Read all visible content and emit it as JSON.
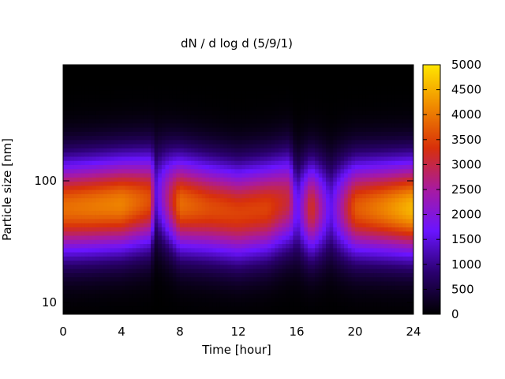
{
  "chart_data": {
    "type": "heatmap",
    "title": "dN / d log d (5/9/1)",
    "xlabel": "Time [hour]",
    "ylabel": "Particle size [nm]",
    "x_range": [
      0,
      24
    ],
    "x_ticks": [
      0,
      4,
      8,
      12,
      16,
      20,
      24
    ],
    "y_scale": "log",
    "y_range_nm": [
      8,
      900
    ],
    "y_ticks": [
      10,
      100
    ],
    "colorbar": {
      "range": [
        0,
        5000
      ],
      "ticks": [
        0,
        500,
        1000,
        1500,
        2000,
        2500,
        3000,
        3500,
        4000,
        4500,
        5000
      ],
      "palette": "black-purple-red-orange-yellow",
      "stops": [
        "#000000",
        "#2a006e",
        "#6a14ff",
        "#a81aa0",
        "#d8300a",
        "#f08a00",
        "#ffe600"
      ]
    },
    "time_hour": [
      0,
      2,
      4,
      6,
      6.3,
      8,
      10,
      12,
      14,
      15.5,
      16,
      17,
      18.3,
      20,
      22,
      24
    ],
    "peak_diameter_nm": [
      60,
      62,
      65,
      70,
      80,
      65,
      60,
      55,
      60,
      70,
      60,
      60,
      60,
      60,
      60,
      60
    ],
    "peak_value": [
      3900,
      4000,
      4100,
      3600,
      1400,
      3900,
      3600,
      3500,
      3500,
      3000,
      1500,
      3300,
      1500,
      3700,
      4100,
      4600
    ],
    "minima": [
      {
        "time_hour": 6.3,
        "note": "dip to low concentration"
      },
      {
        "time_hour": 15.7,
        "note": "dip to low concentration"
      },
      {
        "time_hour": 18.3,
        "note": "dip to low concentration"
      }
    ],
    "grid": false,
    "legend": "colorbar-right"
  }
}
